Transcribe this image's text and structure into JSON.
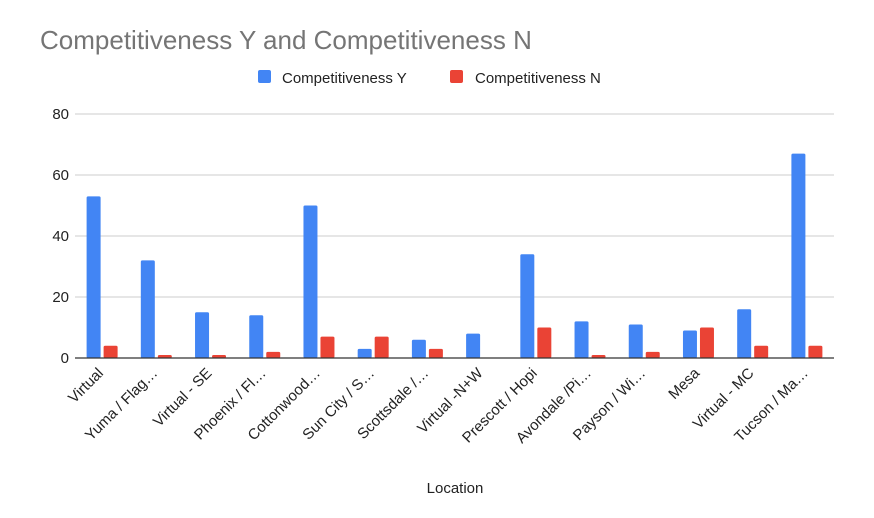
{
  "chart_data": {
    "type": "bar",
    "title": "Competitiveness Y and Competitiveness N",
    "xlabel": "Location",
    "ylabel": "",
    "ylim": [
      0,
      80
    ],
    "yticks": [
      0,
      20,
      40,
      60,
      80
    ],
    "grid": true,
    "legend_position": "top",
    "categories": [
      "Virtual",
      "Yuma / Flag…",
      "Virtual - SE",
      "Phoenix / Fl…",
      "Cottonwood…",
      "Sun City / S…",
      "Scottsdale /…",
      "Virtual -N+W",
      "Prescott / Hopi",
      "Avondale /Pi…",
      "Payson / Wi…",
      "Mesa",
      "Virtual - MC",
      "Tucson / Ma…"
    ],
    "series": [
      {
        "name": "Competitiveness Y",
        "color": "#4285f4",
        "values": [
          53,
          32,
          15,
          14,
          50,
          3,
          6,
          8,
          34,
          12,
          11,
          9,
          16,
          67
        ]
      },
      {
        "name": "Competitiveness N",
        "color": "#ea4335",
        "values": [
          4,
          1,
          1,
          2,
          7,
          7,
          3,
          0,
          10,
          1,
          2,
          10,
          4,
          4
        ]
      }
    ]
  }
}
